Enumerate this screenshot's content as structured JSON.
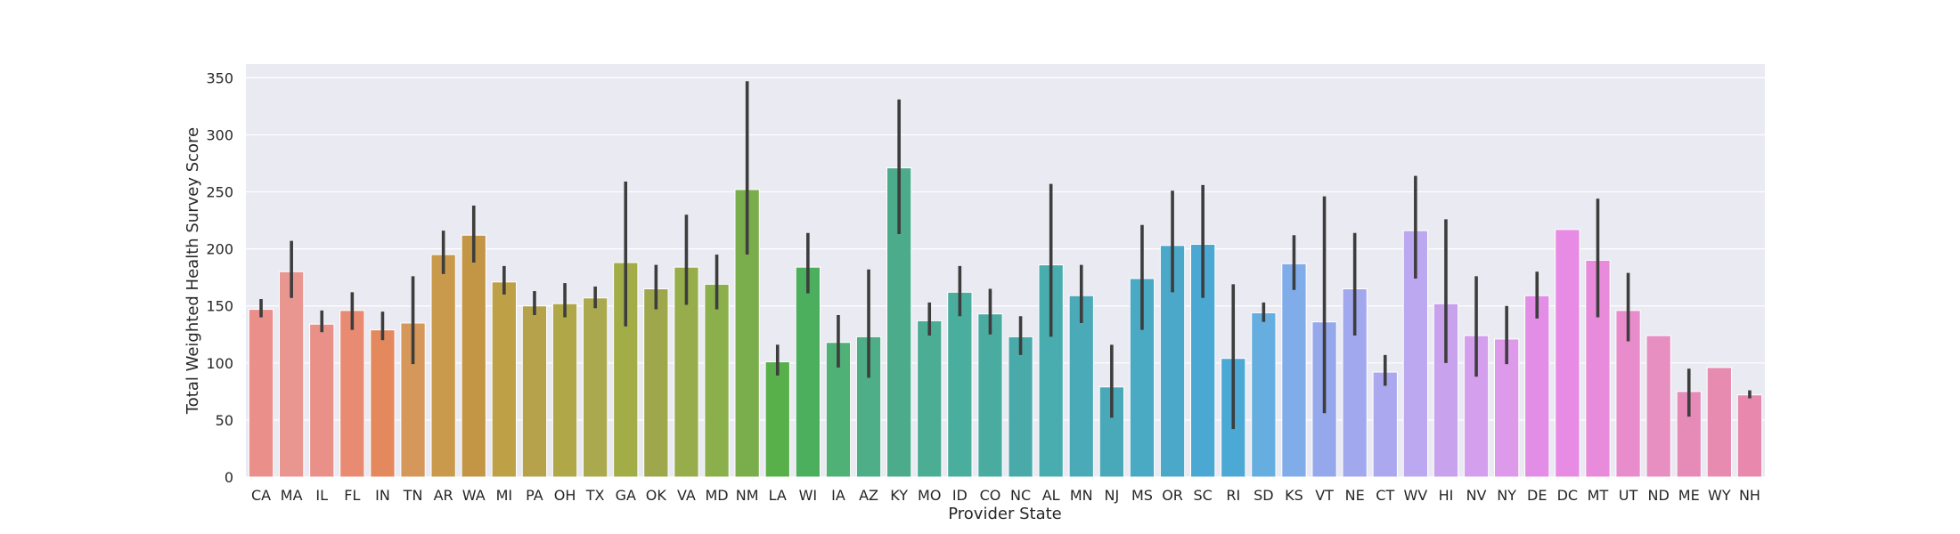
{
  "chart_data": {
    "type": "bar",
    "title": "",
    "xlabel": "Provider State",
    "ylabel": "Total Weighted Health Survey Score",
    "ylim": [
      0,
      362
    ],
    "yticks": [
      0,
      50,
      100,
      150,
      200,
      250,
      300,
      350
    ],
    "grid": true,
    "legend": "none",
    "categories": [
      "CA",
      "MA",
      "IL",
      "FL",
      "IN",
      "TN",
      "AR",
      "WA",
      "MI",
      "PA",
      "OH",
      "TX",
      "GA",
      "OK",
      "VA",
      "MD",
      "NM",
      "LA",
      "WI",
      "IA",
      "AZ",
      "KY",
      "MO",
      "ID",
      "CO",
      "NC",
      "AL",
      "MN",
      "NJ",
      "MS",
      "OR",
      "SC",
      "RI",
      "SD",
      "KS",
      "VT",
      "NE",
      "CT",
      "WV",
      "HI",
      "NV",
      "NY",
      "DE",
      "DC",
      "MT",
      "UT",
      "ND",
      "ME",
      "WY",
      "NH"
    ],
    "values": [
      147,
      180,
      134,
      146,
      129,
      135,
      195,
      212,
      171,
      150,
      152,
      157,
      188,
      165,
      184,
      169,
      252,
      101,
      184,
      118,
      123,
      271,
      137,
      162,
      143,
      123,
      186,
      159,
      79,
      174,
      203,
      204,
      104,
      144,
      187,
      136,
      165,
      92,
      216,
      152,
      124,
      121,
      159,
      217,
      190,
      146,
      124,
      75,
      96,
      72
    ],
    "error_low": [
      140,
      157,
      127,
      129,
      120,
      99,
      178,
      188,
      160,
      142,
      140,
      148,
      132,
      147,
      151,
      147,
      195,
      89,
      161,
      96,
      87,
      213,
      124,
      141,
      125,
      107,
      123,
      135,
      52,
      129,
      162,
      157,
      42,
      136,
      164,
      56,
      124,
      80,
      174,
      100,
      88,
      99,
      139,
      217,
      140,
      119,
      124,
      53,
      96,
      69
    ],
    "error_high": [
      156,
      207,
      146,
      162,
      145,
      176,
      216,
      238,
      185,
      163,
      170,
      167,
      259,
      186,
      230,
      195,
      347,
      116,
      214,
      142,
      182,
      331,
      153,
      185,
      165,
      141,
      257,
      186,
      116,
      221,
      251,
      256,
      169,
      153,
      212,
      246,
      214,
      107,
      264,
      226,
      176,
      150,
      180,
      217,
      244,
      179,
      124,
      95,
      96,
      76
    ],
    "colors": [
      "#ea8f8a",
      "#e99690",
      "#e99189",
      "#e88b72",
      "#e4895e",
      "#d5975a",
      "#c99a4c",
      "#c39645",
      "#bea046",
      "#b5a24a",
      "#b0a749",
      "#aba94d",
      "#a3ad48",
      "#9ea74c",
      "#97ad4c",
      "#8bb04b",
      "#7aad4b",
      "#58b04a",
      "#4caf5e",
      "#4fb176",
      "#4eae87",
      "#4bab8b",
      "#4cad95",
      "#4aae9f",
      "#4aaba0",
      "#4aaaaa",
      "#49adb0",
      "#4aaab8",
      "#4aa9b8",
      "#4aa9c3",
      "#4ba8c9",
      "#4aa8d2",
      "#4ca9d6",
      "#66aee0",
      "#81acea",
      "#96a8ec",
      "#a1a8ee",
      "#aca8ef",
      "#bca8f0",
      "#c8a2ed",
      "#d49fec",
      "#dd9aea",
      "#e38ee6",
      "#e88be4",
      "#e88bda",
      "#e88ccc",
      "#e88fc1",
      "#e68bb8",
      "#e88bb0",
      "#e788ac"
    ]
  }
}
